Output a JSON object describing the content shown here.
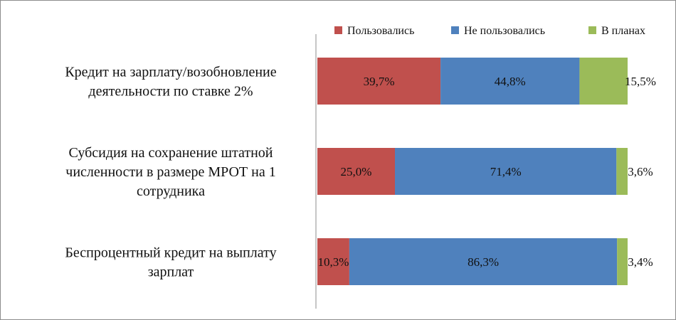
{
  "chart_data": {
    "type": "bar",
    "orientation": "horizontal",
    "stacked": true,
    "percent_stacked": true,
    "categories": [
      [
        "Кредит на зарплату/возобновление",
        "деятельности по ставке 2%"
      ],
      [
        "Субсидия на сохранение штатной",
        "численности в размере МРОТ на 1",
        "сотрудника"
      ],
      [
        "Беспроцентный кредит на выплату",
        "зарплат"
      ]
    ],
    "series": [
      {
        "name": "Пользовались",
        "color": "#c0504d",
        "values": [
          39.7,
          25.0,
          10.3
        ],
        "labels": [
          "39,7%",
          "25,0%",
          "10,3%"
        ]
      },
      {
        "name": "Не пользовались",
        "color": "#4f81bd",
        "values": [
          44.8,
          71.4,
          86.3
        ],
        "labels": [
          "44,8%",
          "71,4%",
          "86,3%"
        ]
      },
      {
        "name": "В планах",
        "color": "#9bbb59",
        "values": [
          15.5,
          3.6,
          3.4
        ],
        "labels": [
          "15,5%",
          "3,6%",
          "3,4%"
        ]
      }
    ],
    "xlim": [
      0,
      100
    ],
    "legend_position": "top-right",
    "grid": false
  }
}
